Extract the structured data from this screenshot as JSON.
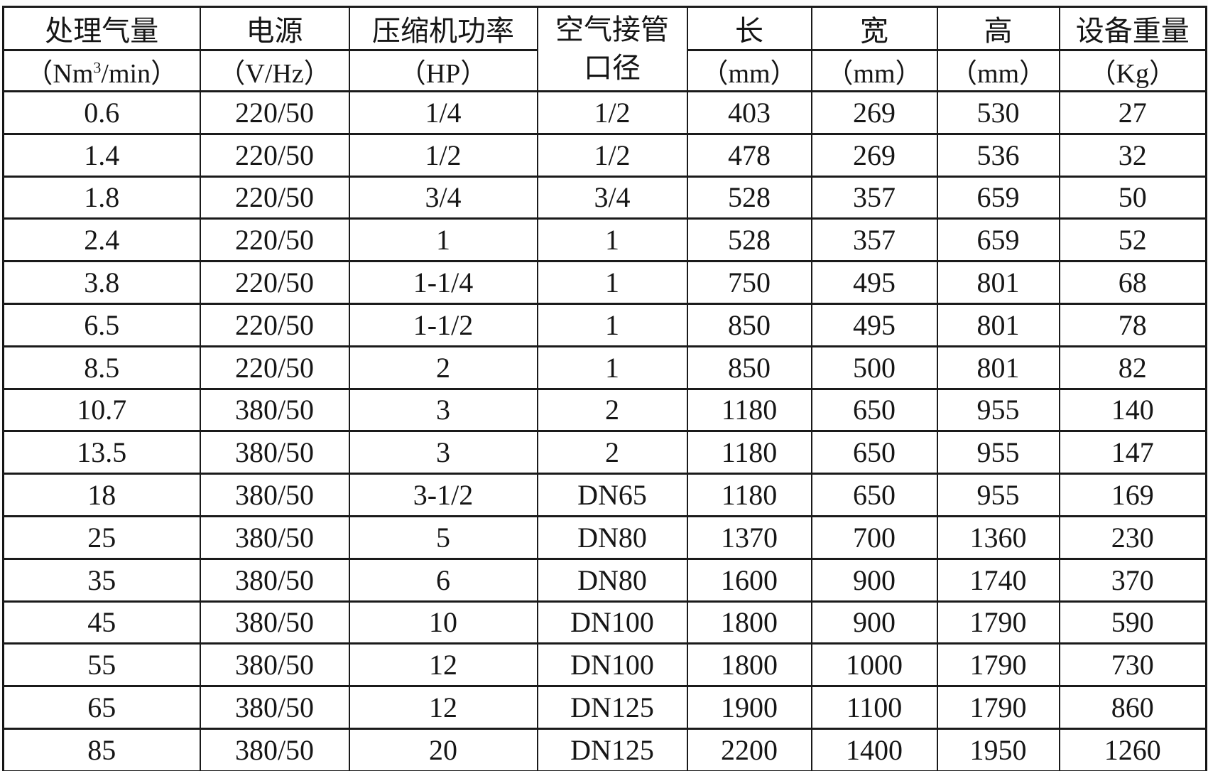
{
  "table": {
    "header": {
      "flow": {
        "title": "处理气量",
        "unit_prefix": "（Nm",
        "unit_sup": "3",
        "unit_suffix": "/min）"
      },
      "power": {
        "title": "电源",
        "unit": "（V/Hz）"
      },
      "compressor": {
        "title": "压缩机功率",
        "unit": "（HP）"
      },
      "pipe": {
        "line1": "空气接管",
        "line2": "口径"
      },
      "length": {
        "title": "长",
        "unit": "（mm）"
      },
      "width": {
        "title": "宽",
        "unit": "（mm）"
      },
      "height": {
        "title": "高",
        "unit": "（mm）"
      },
      "weight": {
        "title": "设备重量",
        "unit": "（Kg）"
      }
    },
    "rows": [
      [
        "0.6",
        "220/50",
        "1/4",
        "1/2",
        "403",
        "269",
        "530",
        "27"
      ],
      [
        "1.4",
        "220/50",
        "1/2",
        "1/2",
        "478",
        "269",
        "536",
        "32"
      ],
      [
        "1.8",
        "220/50",
        "3/4",
        "3/4",
        "528",
        "357",
        "659",
        "50"
      ],
      [
        "2.4",
        "220/50",
        "1",
        "1",
        "528",
        "357",
        "659",
        "52"
      ],
      [
        "3.8",
        "220/50",
        "1-1/4",
        "1",
        "750",
        "495",
        "801",
        "68"
      ],
      [
        "6.5",
        "220/50",
        "1-1/2",
        "1",
        "850",
        "495",
        "801",
        "78"
      ],
      [
        "8.5",
        "220/50",
        "2",
        "1",
        "850",
        "500",
        "801",
        "82"
      ],
      [
        "10.7",
        "380/50",
        "3",
        "2",
        "1180",
        "650",
        "955",
        "140"
      ],
      [
        "13.5",
        "380/50",
        "3",
        "2",
        "1180",
        "650",
        "955",
        "147"
      ],
      [
        "18",
        "380/50",
        "3-1/2",
        "DN65",
        "1180",
        "650",
        "955",
        "169"
      ],
      [
        "25",
        "380/50",
        "5",
        "DN80",
        "1370",
        "700",
        "1360",
        "230"
      ],
      [
        "35",
        "380/50",
        "6",
        "DN80",
        "1600",
        "900",
        "1740",
        "370"
      ],
      [
        "45",
        "380/50",
        "10",
        "DN100",
        "1800",
        "900",
        "1790",
        "590"
      ],
      [
        "55",
        "380/50",
        "12",
        "DN100",
        "1800",
        "1000",
        "1790",
        "730"
      ],
      [
        "65",
        "380/50",
        "12",
        "DN125",
        "1900",
        "1100",
        "1790",
        "860"
      ],
      [
        "85",
        "380/50",
        "20",
        "DN125",
        "2200",
        "1400",
        "1950",
        "1260"
      ]
    ]
  }
}
